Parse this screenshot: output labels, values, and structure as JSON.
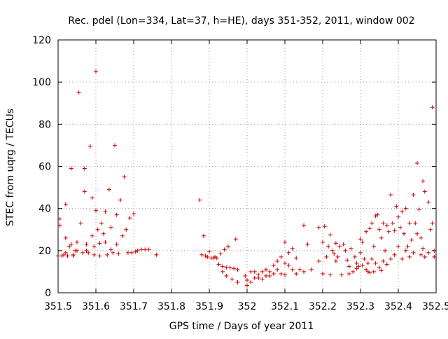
{
  "chart_data": {
    "type": "scatter",
    "title": "Rec. pdel (Lon=334, Lat=37, h=HE), days 351-352, 2011, window 002",
    "xlabel": "GPS time / Days of year 2011",
    "ylabel": "STEC from uqrg / TECUs",
    "xlim": [
      351.5,
      352.5
    ],
    "ylim": [
      0,
      120
    ],
    "x_ticks": [
      "351.5",
      "351.6",
      "351.7",
      "351.8",
      "351.9",
      "352",
      "352.1",
      "352.2",
      "352.3",
      "352.4",
      "352.5"
    ],
    "y_ticks": [
      "0",
      "20",
      "40",
      "60",
      "80",
      "100",
      "120"
    ],
    "grid": true,
    "marker": "+",
    "color": "#cc0000",
    "points": [
      [
        351.5,
        17.5
      ],
      [
        351.505,
        35
      ],
      [
        351.505,
        32
      ],
      [
        351.51,
        17.5
      ],
      [
        351.515,
        18
      ],
      [
        351.52,
        42
      ],
      [
        351.52,
        26
      ],
      [
        351.52,
        19
      ],
      [
        351.525,
        17.5
      ],
      [
        351.53,
        22
      ],
      [
        351.535,
        59
      ],
      [
        351.535,
        23
      ],
      [
        351.54,
        18
      ],
      [
        351.54,
        17.5
      ],
      [
        351.545,
        20
      ],
      [
        351.55,
        24
      ],
      [
        351.55,
        20
      ],
      [
        351.555,
        95
      ],
      [
        351.56,
        33
      ],
      [
        351.565,
        19
      ],
      [
        351.57,
        59
      ],
      [
        351.57,
        48
      ],
      [
        351.575,
        23
      ],
      [
        351.575,
        20
      ],
      [
        351.58,
        19
      ],
      [
        351.585,
        69.5
      ],
      [
        351.59,
        45
      ],
      [
        351.59,
        27
      ],
      [
        351.595,
        22
      ],
      [
        351.595,
        18
      ],
      [
        351.6,
        105
      ],
      [
        351.6,
        39
      ],
      [
        351.605,
        30
      ],
      [
        351.61,
        23.5
      ],
      [
        351.61,
        17.5
      ],
      [
        351.615,
        33
      ],
      [
        351.62,
        28
      ],
      [
        351.625,
        38.5
      ],
      [
        351.625,
        24
      ],
      [
        351.63,
        18
      ],
      [
        351.635,
        49
      ],
      [
        351.64,
        31
      ],
      [
        351.64,
        20.5
      ],
      [
        351.645,
        19
      ],
      [
        351.65,
        70
      ],
      [
        351.655,
        37
      ],
      [
        351.655,
        23
      ],
      [
        351.66,
        18.5
      ],
      [
        351.665,
        44
      ],
      [
        351.67,
        27
      ],
      [
        351.675,
        55
      ],
      [
        351.68,
        30
      ],
      [
        351.685,
        19
      ],
      [
        351.69,
        35.5
      ],
      [
        351.695,
        19
      ],
      [
        351.7,
        37.5
      ],
      [
        351.705,
        19.5
      ],
      [
        351.71,
        20
      ],
      [
        351.72,
        20.5
      ],
      [
        351.73,
        20.5
      ],
      [
        351.74,
        20.5
      ],
      [
        351.76,
        18
      ],
      [
        351.875,
        44
      ],
      [
        351.88,
        18
      ],
      [
        351.885,
        27
      ],
      [
        351.89,
        17.5
      ],
      [
        351.895,
        17
      ],
      [
        351.9,
        19.5
      ],
      [
        351.905,
        16.5
      ],
      [
        351.91,
        16.5
      ],
      [
        351.915,
        17
      ],
      [
        351.92,
        16.5
      ],
      [
        351.925,
        13.5
      ],
      [
        351.93,
        18.5
      ],
      [
        351.935,
        12.5
      ],
      [
        351.935,
        10
      ],
      [
        351.94,
        20.5
      ],
      [
        351.945,
        12
      ],
      [
        351.945,
        8
      ],
      [
        351.95,
        22
      ],
      [
        351.955,
        12
      ],
      [
        351.96,
        6.5
      ],
      [
        351.965,
        11.5
      ],
      [
        351.97,
        25.5
      ],
      [
        351.975,
        11
      ],
      [
        351.975,
        5
      ],
      [
        351.995,
        8
      ],
      [
        352,
        6
      ],
      [
        352,
        3.5
      ],
      [
        352.01,
        10
      ],
      [
        352.01,
        5
      ],
      [
        352.02,
        7
      ],
      [
        352.02,
        10
      ],
      [
        352.03,
        7
      ],
      [
        352.03,
        8.5
      ],
      [
        352.04,
        10
      ],
      [
        352.04,
        6.5
      ],
      [
        352.05,
        11
      ],
      [
        352.05,
        8
      ],
      [
        352.06,
        10
      ],
      [
        352.06,
        8
      ],
      [
        352.07,
        13
      ],
      [
        352.07,
        9
      ],
      [
        352.08,
        15
      ],
      [
        352.08,
        11
      ],
      [
        352.09,
        17
      ],
      [
        352.09,
        9
      ],
      [
        352.1,
        14
      ],
      [
        352.1,
        24
      ],
      [
        352.1,
        8.5
      ],
      [
        352.11,
        19
      ],
      [
        352.11,
        13
      ],
      [
        352.12,
        21
      ],
      [
        352.12,
        11
      ],
      [
        352.13,
        16.5
      ],
      [
        352.13,
        9
      ],
      [
        352.14,
        11
      ],
      [
        352.15,
        32
      ],
      [
        352.15,
        10
      ],
      [
        352.16,
        23
      ],
      [
        352.17,
        11
      ],
      [
        352.19,
        31
      ],
      [
        352.19,
        15
      ],
      [
        352.2,
        24
      ],
      [
        352.2,
        9
      ],
      [
        352.205,
        31.5
      ],
      [
        352.21,
        17
      ],
      [
        352.215,
        22
      ],
      [
        352.22,
        27.5
      ],
      [
        352.22,
        8.5
      ],
      [
        352.225,
        20
      ],
      [
        352.23,
        18.5
      ],
      [
        352.235,
        23.5
      ],
      [
        352.235,
        15
      ],
      [
        352.24,
        17
      ],
      [
        352.245,
        22
      ],
      [
        352.25,
        8.5
      ],
      [
        352.255,
        23
      ],
      [
        352.26,
        20
      ],
      [
        352.265,
        15.5
      ],
      [
        352.27,
        12.5
      ],
      [
        352.27,
        9
      ],
      [
        352.275,
        21
      ],
      [
        352.28,
        10
      ],
      [
        352.285,
        17
      ],
      [
        352.29,
        14
      ],
      [
        352.29,
        11.5
      ],
      [
        352.295,
        12.5
      ],
      [
        352.3,
        25.5
      ],
      [
        352.3,
        19
      ],
      [
        352.305,
        24
      ],
      [
        352.305,
        13
      ],
      [
        352.31,
        16
      ],
      [
        352.315,
        29
      ],
      [
        352.315,
        11
      ],
      [
        352.32,
        14
      ],
      [
        352.32,
        10
      ],
      [
        352.325,
        30.5
      ],
      [
        352.325,
        9.5
      ],
      [
        352.33,
        33
      ],
      [
        352.33,
        16
      ],
      [
        352.335,
        22
      ],
      [
        352.335,
        10
      ],
      [
        352.34,
        36.5
      ],
      [
        352.34,
        14
      ],
      [
        352.345,
        37
      ],
      [
        352.35,
        30
      ],
      [
        352.35,
        12
      ],
      [
        352.355,
        26
      ],
      [
        352.355,
        10.5
      ],
      [
        352.36,
        33
      ],
      [
        352.36,
        15
      ],
      [
        352.365,
        20
      ],
      [
        352.37,
        32
      ],
      [
        352.37,
        13.5
      ],
      [
        352.375,
        29
      ],
      [
        352.38,
        46.5
      ],
      [
        352.38,
        16
      ],
      [
        352.385,
        33
      ],
      [
        352.39,
        29.5
      ],
      [
        352.39,
        18
      ],
      [
        352.395,
        41
      ],
      [
        352.4,
        36
      ],
      [
        352.4,
        22
      ],
      [
        352.405,
        31
      ],
      [
        352.41,
        38.5
      ],
      [
        352.41,
        16
      ],
      [
        352.415,
        28
      ],
      [
        352.42,
        40
      ],
      [
        352.42,
        20
      ],
      [
        352.425,
        22
      ],
      [
        352.43,
        33
      ],
      [
        352.43,
        17
      ],
      [
        352.435,
        25
      ],
      [
        352.44,
        46.5
      ],
      [
        352.44,
        19
      ],
      [
        352.445,
        33
      ],
      [
        352.45,
        61.5
      ],
      [
        352.45,
        28
      ],
      [
        352.455,
        39.5
      ],
      [
        352.46,
        26
      ],
      [
        352.46,
        18
      ],
      [
        352.465,
        53
      ],
      [
        352.465,
        21
      ],
      [
        352.47,
        48
      ],
      [
        352.47,
        17
      ],
      [
        352.48,
        43
      ],
      [
        352.48,
        19
      ],
      [
        352.485,
        30
      ],
      [
        352.49,
        88
      ],
      [
        352.49,
        33
      ],
      [
        352.495,
        20
      ],
      [
        352.495,
        17
      ]
    ]
  }
}
